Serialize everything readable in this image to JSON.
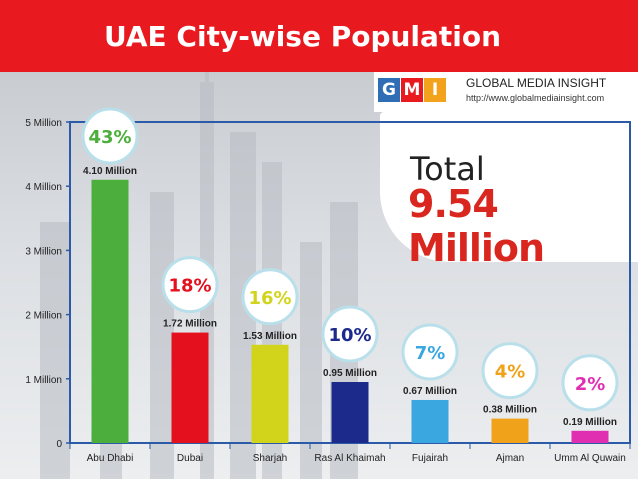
{
  "slide": {
    "title": "UAE City-wise Population"
  },
  "logo": {
    "letters": [
      "G",
      "M",
      "I"
    ],
    "letter_colors": [
      "#2f6db5",
      "#e8191f",
      "#f2a31b"
    ],
    "name": "GLOBAL MEDIA INSIGHT",
    "url": "http://www.globalmediainsight.com"
  },
  "total": {
    "label": "Total",
    "value": "9.54 Million"
  },
  "chart_data": {
    "type": "bar",
    "title": "UAE City-wise Population",
    "categories": [
      "Abu Dhabi",
      "Dubai",
      "Sharjah",
      "Ras Al Khaimah",
      "Fujairah",
      "Ajman",
      "Umm Al Quwain"
    ],
    "values": [
      4.1,
      1.72,
      1.53,
      0.95,
      0.67,
      0.38,
      0.19
    ],
    "value_labels": [
      "4.10 Million",
      "1.72 Million",
      "1.53 Million",
      "0.95 Million",
      "0.67 Million",
      "0.38 Million",
      "0.19 Million"
    ],
    "percent_labels": [
      "43%",
      "18%",
      "16%",
      "10%",
      "7%",
      "4%",
      "2%"
    ],
    "colors": [
      "#4cae3c",
      "#e5101d",
      "#d2d41b",
      "#1c2a8c",
      "#3aa7e0",
      "#f0a21a",
      "#e02fb0"
    ],
    "percent_colors": [
      "#4cae3c",
      "#e5101d",
      "#d2d41b",
      "#1c2a8c",
      "#3aa7e0",
      "#f0a21a",
      "#e02fb0"
    ],
    "y_ticks": [
      0,
      1,
      2,
      3,
      4,
      5
    ],
    "y_tick_labels": [
      "0",
      "1 Million",
      "2 Million",
      "3 Million",
      "4 Million",
      "5 Million"
    ],
    "ylim": [
      0,
      5
    ],
    "grid": false,
    "xlabel": "",
    "ylabel": ""
  }
}
